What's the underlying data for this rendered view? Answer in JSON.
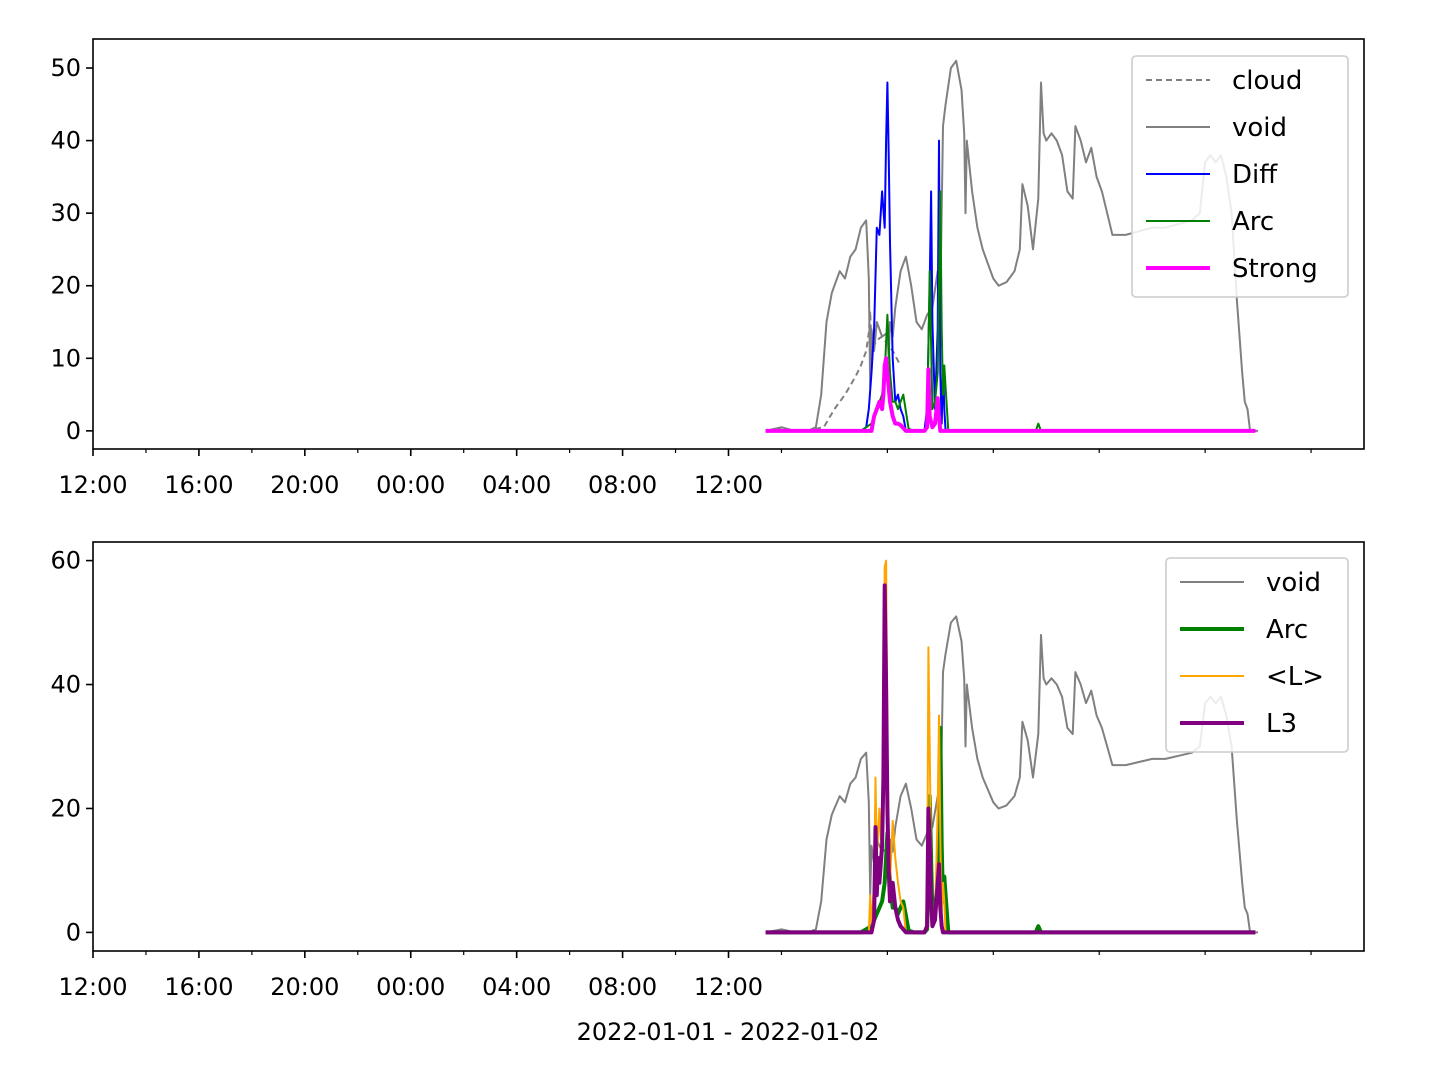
{
  "colors": {
    "cloud": "#808080",
    "void": "#808080",
    "Diff": "#0000ff",
    "Arc": "#008000",
    "Strong": "#ff00ff",
    "L": "#ffa500",
    "L3": "#800080"
  },
  "chart_data": [
    {
      "type": "line",
      "x_axis": {
        "type": "time",
        "range_hours": [
          -12,
          36
        ],
        "ticks": [
          -12,
          -8,
          -4,
          0,
          4,
          8,
          12
        ],
        "tick_labels": [
          "12:00",
          "16:00",
          "20:00",
          "00:00",
          "04:00",
          "08:00",
          "12:00"
        ]
      },
      "ylim": [
        -2.5,
        54
      ],
      "y_ticks": [
        0,
        10,
        20,
        30,
        40,
        50
      ],
      "y_tick_labels": [
        "0",
        "10",
        "20",
        "30",
        "40",
        "50"
      ],
      "legend": {
        "placement": "top-right",
        "entries": [
          "cloud",
          "void",
          "Diff",
          "Arc",
          "Strong"
        ]
      },
      "series": [
        {
          "name": "cloud",
          "style": "dashed",
          "x": [
            13.4,
            14.0,
            14.4,
            14.8,
            15.2,
            15.6,
            16.0,
            16.4,
            16.8,
            17.0,
            17.2,
            17.3,
            17.35,
            17.4,
            17.6,
            17.8,
            18.0,
            18.2,
            18.5
          ],
          "y": [
            0,
            0.3,
            0,
            0,
            0.2,
            0.5,
            3,
            5,
            7.5,
            9,
            11,
            13.5,
            16.5,
            11,
            12.5,
            13,
            12,
            11,
            9
          ]
        },
        {
          "name": "void",
          "style": "solid",
          "x": [
            13.4,
            14.0,
            14.2,
            14.5,
            15.0,
            15.3,
            15.5,
            15.7,
            15.9,
            16.0,
            16.2,
            16.4,
            16.6,
            16.8,
            17.0,
            17.2,
            17.3,
            17.35,
            17.4,
            17.5,
            17.6,
            17.8,
            18.0,
            18.05,
            18.1,
            18.2,
            18.3,
            18.5,
            18.7,
            18.9,
            19.1,
            19.3,
            19.5,
            19.7,
            19.9,
            20.0,
            20.1,
            20.2,
            20.4,
            20.6,
            20.8,
            20.9,
            20.95,
            21.0,
            21.2,
            21.4,
            21.6,
            21.8,
            22.0,
            22.2,
            22.5,
            22.8,
            23.0,
            23.1,
            23.3,
            23.5,
            23.7,
            23.8,
            23.9,
            24.0,
            24.2,
            24.4,
            24.6,
            24.8,
            25.0,
            25.1,
            25.3,
            25.5,
            25.7,
            25.9,
            26.1,
            26.3,
            26.5,
            26.7,
            27.0,
            27.5,
            28.0,
            28.5,
            29.0,
            29.5,
            29.8,
            30.0,
            30.2,
            30.4,
            30.6,
            30.8,
            31.0,
            31.2,
            31.4,
            31.5,
            31.6,
            31.7,
            32.0
          ],
          "y": [
            0,
            0.5,
            0.3,
            0,
            0,
            0.5,
            5,
            15,
            19,
            20,
            22,
            21,
            24,
            25,
            28,
            29,
            21,
            6,
            14,
            11,
            15,
            13,
            13.5,
            10,
            15,
            13,
            17,
            22,
            24,
            20,
            15,
            14,
            16,
            17,
            22,
            18,
            42,
            45,
            50,
            51,
            47,
            41,
            30,
            40,
            33,
            28,
            25,
            23,
            21,
            20,
            20.5,
            22,
            25,
            34,
            31,
            25,
            32,
            48,
            41,
            40,
            41,
            40,
            38,
            33,
            32,
            42,
            40,
            37,
            39,
            35,
            33,
            30,
            27,
            27,
            27,
            27.5,
            28,
            28,
            28.5,
            29,
            30,
            37,
            38,
            37,
            38,
            35,
            30,
            18,
            8,
            4,
            3,
            0,
            0
          ]
        },
        {
          "name": "Diff",
          "style": "solid",
          "x": [
            13.4,
            17.0,
            17.2,
            17.3,
            17.4,
            17.5,
            17.6,
            17.7,
            17.8,
            17.9,
            17.95,
            18.0,
            18.05,
            18.1,
            18.2,
            18.3,
            18.4,
            18.5,
            18.6,
            18.7,
            19.0,
            19.4,
            19.5,
            19.6,
            19.65,
            19.7,
            19.8,
            19.9,
            19.95,
            20.0,
            20.05,
            20.1,
            20.15,
            20.2,
            21.0,
            31.9
          ],
          "y": [
            0,
            0,
            0.5,
            3,
            8,
            14,
            28,
            27,
            33,
            28,
            40,
            48,
            38,
            26,
            10,
            4,
            5,
            3,
            2,
            0,
            0,
            0,
            3,
            20,
            33,
            15,
            3,
            14,
            40,
            8,
            1,
            9,
            3,
            0,
            0,
            0
          ]
        },
        {
          "name": "Arc",
          "style": "solid",
          "x": [
            13.4,
            17.0,
            17.4,
            17.6,
            17.8,
            17.9,
            18.0,
            18.1,
            18.2,
            18.3,
            18.4,
            18.5,
            18.6,
            18.8,
            19.0,
            19.4,
            19.5,
            19.6,
            19.65,
            19.7,
            19.8,
            19.9,
            20.0,
            20.05,
            20.1,
            20.15,
            20.2,
            20.3,
            20.4,
            23.6,
            23.7,
            23.8,
            31.9
          ],
          "y": [
            0,
            0,
            1,
            3,
            5,
            8,
            16,
            8,
            4,
            4,
            3,
            4,
            5,
            0.3,
            0,
            0,
            0.5,
            22,
            12,
            3,
            4,
            8,
            33,
            14,
            5,
            9,
            6,
            0,
            0,
            0,
            1,
            0,
            0
          ]
        },
        {
          "name": "Strong",
          "style": "solid",
          "x": [
            13.4,
            17.4,
            17.5,
            17.6,
            17.7,
            17.8,
            17.85,
            17.9,
            17.95,
            18.0,
            18.1,
            18.2,
            18.3,
            18.4,
            18.5,
            18.7,
            19.4,
            19.5,
            19.55,
            19.6,
            19.7,
            19.8,
            19.9,
            19.95,
            20.0,
            20.1,
            31.9
          ],
          "y": [
            0,
            0,
            2,
            3,
            4,
            3,
            5,
            9,
            10,
            8,
            4,
            2,
            1,
            1,
            0.8,
            0,
            0,
            0.5,
            8.5,
            2,
            0.5,
            1,
            4.5,
            2,
            0,
            0,
            0
          ]
        }
      ]
    },
    {
      "type": "line",
      "xlabel": "2022-01-01 - 2022-01-02",
      "x_axis": {
        "type": "time",
        "range_hours": [
          -12,
          36
        ],
        "ticks": [
          -12,
          -8,
          -4,
          0,
          4,
          8,
          12
        ],
        "tick_labels": [
          "12:00",
          "16:00",
          "20:00",
          "00:00",
          "04:00",
          "08:00",
          "12:00"
        ]
      },
      "ylim": [
        -3,
        63
      ],
      "y_ticks": [
        0,
        20,
        40,
        60
      ],
      "y_tick_labels": [
        "0",
        "20",
        "40",
        "60"
      ],
      "legend": {
        "placement": "top-right",
        "entries": [
          "void",
          "Arc",
          "<L>",
          "L3"
        ]
      },
      "series": [
        {
          "name": "void",
          "style": "solid",
          "x": [
            13.4,
            14.0,
            14.2,
            14.5,
            15.0,
            15.3,
            15.5,
            15.7,
            15.9,
            16.0,
            16.2,
            16.4,
            16.6,
            16.8,
            17.0,
            17.2,
            17.3,
            17.35,
            17.4,
            17.5,
            17.6,
            17.8,
            18.0,
            18.05,
            18.1,
            18.2,
            18.3,
            18.5,
            18.7,
            18.9,
            19.1,
            19.3,
            19.5,
            19.7,
            19.9,
            20.0,
            20.1,
            20.2,
            20.4,
            20.6,
            20.8,
            20.9,
            20.95,
            21.0,
            21.2,
            21.4,
            21.6,
            21.8,
            22.0,
            22.2,
            22.5,
            22.8,
            23.0,
            23.1,
            23.3,
            23.5,
            23.7,
            23.8,
            23.9,
            24.0,
            24.2,
            24.4,
            24.6,
            24.8,
            25.0,
            25.1,
            25.3,
            25.5,
            25.7,
            25.9,
            26.1,
            26.3,
            26.5,
            26.7,
            27.0,
            27.5,
            28.0,
            28.5,
            29.0,
            29.5,
            29.8,
            30.0,
            30.2,
            30.4,
            30.6,
            30.8,
            31.0,
            31.2,
            31.4,
            31.5,
            31.6,
            31.7,
            32.0
          ],
          "y": [
            0,
            0.5,
            0.3,
            0,
            0,
            0.5,
            5,
            15,
            19,
            20,
            22,
            21,
            24,
            25,
            28,
            29,
            21,
            6,
            14,
            11,
            15,
            13,
            13.5,
            10,
            15,
            13,
            17,
            22,
            24,
            20,
            15,
            14,
            16,
            17,
            22,
            18,
            42,
            45,
            50,
            51,
            47,
            41,
            30,
            40,
            33,
            28,
            25,
            23,
            21,
            20,
            20.5,
            22,
            25,
            34,
            31,
            25,
            32,
            48,
            41,
            40,
            41,
            40,
            38,
            33,
            32,
            42,
            40,
            37,
            39,
            35,
            33,
            30,
            27,
            27,
            27,
            27.5,
            28,
            28,
            28.5,
            29,
            30,
            37,
            38,
            37,
            38,
            35,
            30,
            18,
            8,
            4,
            3,
            0,
            0
          ]
        },
        {
          "name": "Arc",
          "style": "solid",
          "x": [
            13.4,
            17.0,
            17.4,
            17.6,
            17.8,
            17.9,
            18.0,
            18.1,
            18.2,
            18.3,
            18.4,
            18.5,
            18.6,
            18.8,
            19.0,
            19.4,
            19.5,
            19.6,
            19.65,
            19.7,
            19.8,
            19.9,
            20.0,
            20.05,
            20.1,
            20.15,
            20.2,
            20.3,
            20.4,
            23.6,
            23.7,
            23.8,
            31.9
          ],
          "y": [
            0,
            0,
            1,
            3,
            5,
            8,
            16,
            8,
            4,
            4,
            3,
            4,
            5,
            0.3,
            0,
            0,
            0.5,
            22,
            12,
            3,
            4,
            8,
            33,
            14,
            5,
            9,
            6,
            0,
            0,
            0,
            1,
            0,
            0
          ]
        },
        {
          "name": "<L>",
          "style": "solid",
          "x": [
            13.4,
            17.3,
            17.35,
            17.4,
            17.5,
            17.55,
            17.6,
            17.7,
            17.75,
            17.8,
            17.85,
            17.9,
            17.95,
            18.0,
            18.05,
            18.1,
            18.2,
            18.3,
            18.4,
            18.5,
            18.6,
            18.7,
            19.4,
            19.5,
            19.55,
            19.6,
            19.65,
            19.7,
            19.8,
            19.9,
            19.95,
            20.0,
            20.05,
            20.1,
            20.15,
            20.2,
            31.9
          ],
          "y": [
            0,
            0,
            6,
            1,
            8,
            25,
            12,
            20,
            15,
            20,
            30,
            59,
            60,
            30,
            15,
            8,
            18,
            12,
            8,
            5,
            4,
            0,
            0,
            2,
            46,
            30,
            10,
            3,
            2,
            20,
            35,
            15,
            3,
            8,
            5,
            0,
            0
          ]
        },
        {
          "name": "L3",
          "style": "solid",
          "x": [
            13.4,
            17.4,
            17.5,
            17.55,
            17.6,
            17.65,
            17.7,
            17.8,
            17.85,
            17.9,
            17.95,
            18.0,
            18.05,
            18.1,
            18.2,
            18.3,
            18.4,
            18.5,
            18.6,
            18.7,
            19.4,
            19.5,
            19.55,
            19.6,
            19.65,
            19.7,
            19.8,
            19.9,
            19.95,
            20.0,
            20.05,
            20.1,
            31.9
          ],
          "y": [
            0,
            0,
            2,
            17,
            6,
            12,
            8,
            14,
            25,
            56,
            40,
            20,
            10,
            5,
            8,
            4,
            2,
            1,
            0.5,
            0,
            0,
            1,
            20,
            15,
            5,
            1,
            2,
            8,
            11,
            4,
            1,
            0,
            0
          ]
        }
      ]
    }
  ]
}
